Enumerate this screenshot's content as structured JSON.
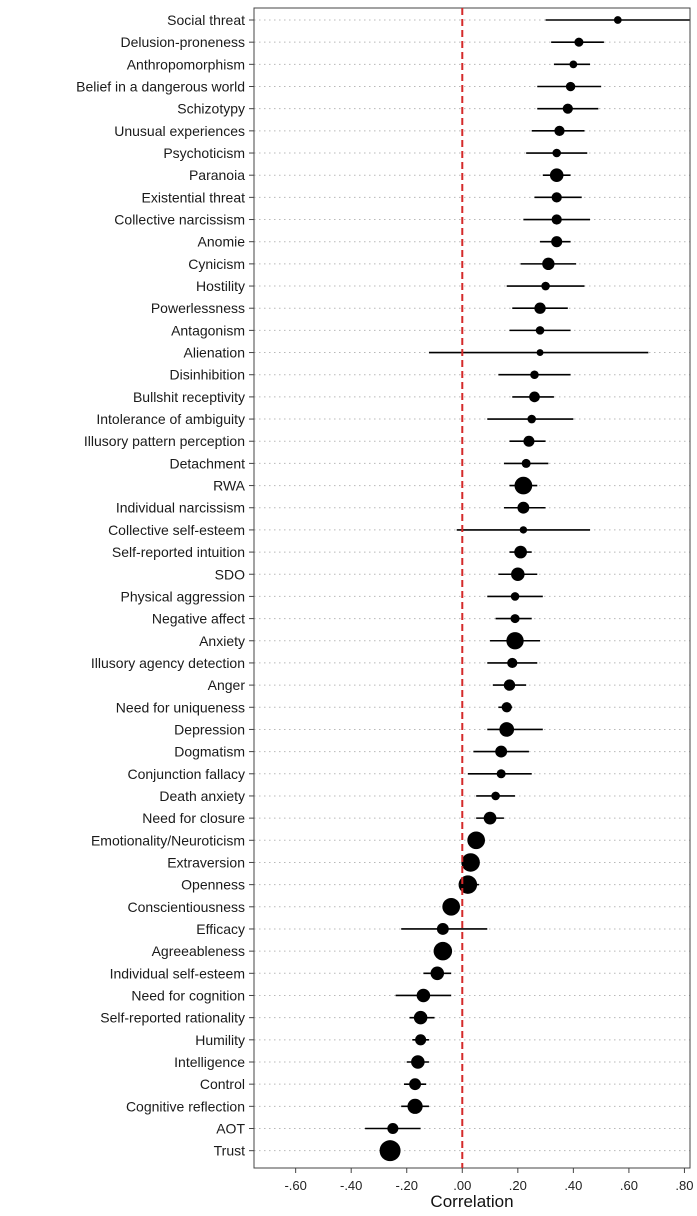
{
  "chart_data": {
    "type": "forest",
    "title": "",
    "xlabel": "Correlation",
    "ylabel": "",
    "xlim": [
      -0.75,
      0.82
    ],
    "xticks": [
      -0.6,
      -0.4,
      -0.2,
      0.0,
      0.2,
      0.4,
      0.6,
      0.8
    ],
    "xtick_labels": [
      "-.60",
      "-.40",
      "-.20",
      ".00",
      ".20",
      ".40",
      ".60",
      ".80"
    ],
    "reference_line": 0,
    "reference_line_color": "#d42a2a",
    "grid": "horizontal dotted",
    "point_color": "#000000",
    "rows": [
      {
        "label": "Social threat",
        "estimate": 0.56,
        "ci_low": 0.3,
        "ci_high": 0.82,
        "weight": 0.2
      },
      {
        "label": "Delusion-proneness",
        "estimate": 0.42,
        "ci_low": 0.32,
        "ci_high": 0.51,
        "weight": 0.28
      },
      {
        "label": "Anthropomorphism",
        "estimate": 0.4,
        "ci_low": 0.33,
        "ci_high": 0.46,
        "weight": 0.2
      },
      {
        "label": "Belief in a dangerous world",
        "estimate": 0.39,
        "ci_low": 0.27,
        "ci_high": 0.5,
        "weight": 0.3
      },
      {
        "label": "Schizotypy",
        "estimate": 0.38,
        "ci_low": 0.27,
        "ci_high": 0.49,
        "weight": 0.35
      },
      {
        "label": "Unusual experiences",
        "estimate": 0.35,
        "ci_low": 0.25,
        "ci_high": 0.44,
        "weight": 0.35
      },
      {
        "label": "Psychoticism",
        "estimate": 0.34,
        "ci_low": 0.23,
        "ci_high": 0.45,
        "weight": 0.25
      },
      {
        "label": "Paranoia",
        "estimate": 0.34,
        "ci_low": 0.29,
        "ci_high": 0.39,
        "weight": 0.55
      },
      {
        "label": "Existential threat",
        "estimate": 0.34,
        "ci_low": 0.26,
        "ci_high": 0.43,
        "weight": 0.35
      },
      {
        "label": "Collective narcissism",
        "estimate": 0.34,
        "ci_low": 0.22,
        "ci_high": 0.46,
        "weight": 0.35
      },
      {
        "label": "Anomie",
        "estimate": 0.34,
        "ci_low": 0.28,
        "ci_high": 0.39,
        "weight": 0.4
      },
      {
        "label": "Cynicism",
        "estimate": 0.31,
        "ci_low": 0.21,
        "ci_high": 0.41,
        "weight": 0.48
      },
      {
        "label": "Hostility",
        "estimate": 0.3,
        "ci_low": 0.16,
        "ci_high": 0.44,
        "weight": 0.25
      },
      {
        "label": "Powerlessness",
        "estimate": 0.28,
        "ci_low": 0.18,
        "ci_high": 0.38,
        "weight": 0.42
      },
      {
        "label": "Antagonism",
        "estimate": 0.28,
        "ci_low": 0.17,
        "ci_high": 0.39,
        "weight": 0.25
      },
      {
        "label": "Alienation",
        "estimate": 0.28,
        "ci_low": -0.12,
        "ci_high": 0.67,
        "weight": 0.15
      },
      {
        "label": "Disinhibition",
        "estimate": 0.26,
        "ci_low": 0.13,
        "ci_high": 0.39,
        "weight": 0.25
      },
      {
        "label": "Bullshit receptivity",
        "estimate": 0.26,
        "ci_low": 0.18,
        "ci_high": 0.33,
        "weight": 0.38
      },
      {
        "label": "Intolerance of ambiguity",
        "estimate": 0.25,
        "ci_low": 0.09,
        "ci_high": 0.4,
        "weight": 0.25
      },
      {
        "label": "Illusory pattern perception",
        "estimate": 0.24,
        "ci_low": 0.17,
        "ci_high": 0.3,
        "weight": 0.4
      },
      {
        "label": "Detachment",
        "estimate": 0.23,
        "ci_low": 0.15,
        "ci_high": 0.31,
        "weight": 0.28
      },
      {
        "label": "RWA",
        "estimate": 0.22,
        "ci_low": 0.17,
        "ci_high": 0.27,
        "weight": 0.8
      },
      {
        "label": "Individual narcissism",
        "estimate": 0.22,
        "ci_low": 0.15,
        "ci_high": 0.3,
        "weight": 0.45
      },
      {
        "label": "Collective self-esteem",
        "estimate": 0.22,
        "ci_low": -0.02,
        "ci_high": 0.46,
        "weight": 0.18
      },
      {
        "label": "Self-reported intuition",
        "estimate": 0.21,
        "ci_low": 0.17,
        "ci_high": 0.25,
        "weight": 0.5
      },
      {
        "label": "SDO",
        "estimate": 0.2,
        "ci_low": 0.13,
        "ci_high": 0.27,
        "weight": 0.55
      },
      {
        "label": "Physical aggression",
        "estimate": 0.19,
        "ci_low": 0.09,
        "ci_high": 0.29,
        "weight": 0.25
      },
      {
        "label": "Negative affect",
        "estimate": 0.19,
        "ci_low": 0.12,
        "ci_high": 0.25,
        "weight": 0.28
      },
      {
        "label": "Anxiety",
        "estimate": 0.19,
        "ci_low": 0.1,
        "ci_high": 0.28,
        "weight": 0.78
      },
      {
        "label": "Illusory agency detection",
        "estimate": 0.18,
        "ci_low": 0.09,
        "ci_high": 0.27,
        "weight": 0.35
      },
      {
        "label": "Anger",
        "estimate": 0.17,
        "ci_low": 0.11,
        "ci_high": 0.23,
        "weight": 0.42
      },
      {
        "label": "Need for uniqueness",
        "estimate": 0.16,
        "ci_low": 0.13,
        "ci_high": 0.18,
        "weight": 0.35
      },
      {
        "label": "Depression",
        "estimate": 0.16,
        "ci_low": 0.09,
        "ci_high": 0.29,
        "weight": 0.62
      },
      {
        "label": "Dogmatism",
        "estimate": 0.14,
        "ci_low": 0.04,
        "ci_high": 0.24,
        "weight": 0.45
      },
      {
        "label": "Conjunction fallacy",
        "estimate": 0.14,
        "ci_low": 0.02,
        "ci_high": 0.25,
        "weight": 0.28
      },
      {
        "label": "Death anxiety",
        "estimate": 0.12,
        "ci_low": 0.05,
        "ci_high": 0.19,
        "weight": 0.25
      },
      {
        "label": "Need for closure",
        "estimate": 0.1,
        "ci_low": 0.05,
        "ci_high": 0.15,
        "weight": 0.5
      },
      {
        "label": "Emotionality/Neuroticism",
        "estimate": 0.05,
        "ci_low": 0.02,
        "ci_high": 0.08,
        "weight": 0.8
      },
      {
        "label": "Extraversion",
        "estimate": 0.03,
        "ci_low": 0.0,
        "ci_high": 0.06,
        "weight": 0.85
      },
      {
        "label": "Openness",
        "estimate": 0.02,
        "ci_low": -0.01,
        "ci_high": 0.06,
        "weight": 0.85
      },
      {
        "label": "Conscientiousness",
        "estimate": -0.04,
        "ci_low": -0.06,
        "ci_high": -0.01,
        "weight": 0.8
      },
      {
        "label": "Efficacy",
        "estimate": -0.07,
        "ci_low": -0.22,
        "ci_high": 0.09,
        "weight": 0.45
      },
      {
        "label": "Agreeableness",
        "estimate": -0.07,
        "ci_low": -0.1,
        "ci_high": -0.04,
        "weight": 0.85
      },
      {
        "label": "Individual self-esteem",
        "estimate": -0.09,
        "ci_low": -0.14,
        "ci_high": -0.04,
        "weight": 0.55
      },
      {
        "label": "Need for cognition",
        "estimate": -0.14,
        "ci_low": -0.24,
        "ci_high": -0.04,
        "weight": 0.55
      },
      {
        "label": "Self-reported rationality",
        "estimate": -0.15,
        "ci_low": -0.19,
        "ci_high": -0.1,
        "weight": 0.55
      },
      {
        "label": "Humility",
        "estimate": -0.15,
        "ci_low": -0.18,
        "ci_high": -0.12,
        "weight": 0.4
      },
      {
        "label": "Intelligence",
        "estimate": -0.16,
        "ci_low": -0.2,
        "ci_high": -0.12,
        "weight": 0.55
      },
      {
        "label": "Control",
        "estimate": -0.17,
        "ci_low": -0.21,
        "ci_high": -0.13,
        "weight": 0.45
      },
      {
        "label": "Cognitive reflection",
        "estimate": -0.17,
        "ci_low": -0.22,
        "ci_high": -0.12,
        "weight": 0.65
      },
      {
        "label": "AOT",
        "estimate": -0.25,
        "ci_low": -0.35,
        "ci_high": -0.15,
        "weight": 0.4
      },
      {
        "label": "Trust",
        "estimate": -0.26,
        "ci_low": -0.29,
        "ci_high": -0.23,
        "weight": 1.0
      }
    ]
  }
}
